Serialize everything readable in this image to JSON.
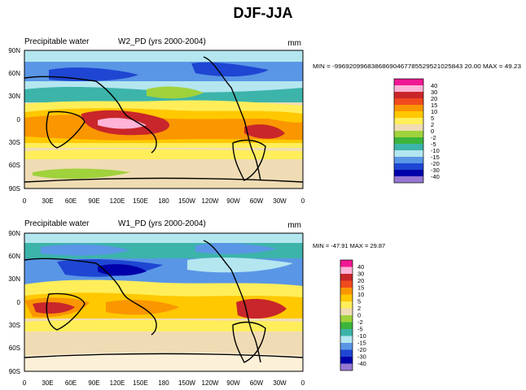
{
  "main_title": "DJF-JJA",
  "chart_data": [
    {
      "type": "heatmap",
      "variable": "Precipitable water",
      "title": "W2_PD (yrs 2000-2004)",
      "units": "mm",
      "stats_text": "MIN = -99692099683868690467785529521025843 20.00 MAX =  49.23",
      "min": "-99692099683868690467785529521025843 20.00",
      "max": "49.23",
      "xticks": [
        "0",
        "30E",
        "60E",
        "90E",
        "120E",
        "150E",
        "180",
        "150W",
        "120W",
        "90W",
        "60W",
        "30W",
        "0"
      ],
      "yticks": [
        "90N",
        "60N",
        "30N",
        "0",
        "30S",
        "60S",
        "90S"
      ],
      "contour_levels": [
        "40",
        "30",
        "20",
        "15",
        "10",
        "5",
        "2",
        "0",
        "-2",
        "-5",
        "-10",
        "-15",
        "-20",
        "-30",
        "-40"
      ]
    },
    {
      "type": "heatmap",
      "variable": "Precipitable water",
      "title": "W1_PD (yrs 2000-2004)",
      "units": "mm",
      "stats_text": "MIN = -47.91 MAX =  29.87",
      "min": "-47.91",
      "max": "29.87",
      "xticks": [
        "0",
        "30E",
        "60E",
        "90E",
        "120E",
        "150E",
        "180",
        "150W",
        "120W",
        "90W",
        "60W",
        "30W",
        "0"
      ],
      "yticks": [
        "90N",
        "60N",
        "30N",
        "0",
        "30S",
        "60S",
        "90S"
      ],
      "contour_levels": [
        "40",
        "30",
        "20",
        "15",
        "10",
        "5",
        "2",
        "0",
        "-2",
        "-5",
        "-10",
        "-15",
        "-20",
        "-30",
        "-40"
      ]
    }
  ],
  "colors": {
    "legend": [
      "#f01894",
      "#ffb4d8",
      "#c8262a",
      "#f04a1e",
      "#fa9600",
      "#ffc800",
      "#ffee5a",
      "#f0dcb4",
      "#a0d23c",
      "#3cb43c",
      "#3cb4aa",
      "#b4e6f0",
      "#5a96e6",
      "#1e46d2",
      "#0000aa",
      "#9678d2"
    ]
  }
}
